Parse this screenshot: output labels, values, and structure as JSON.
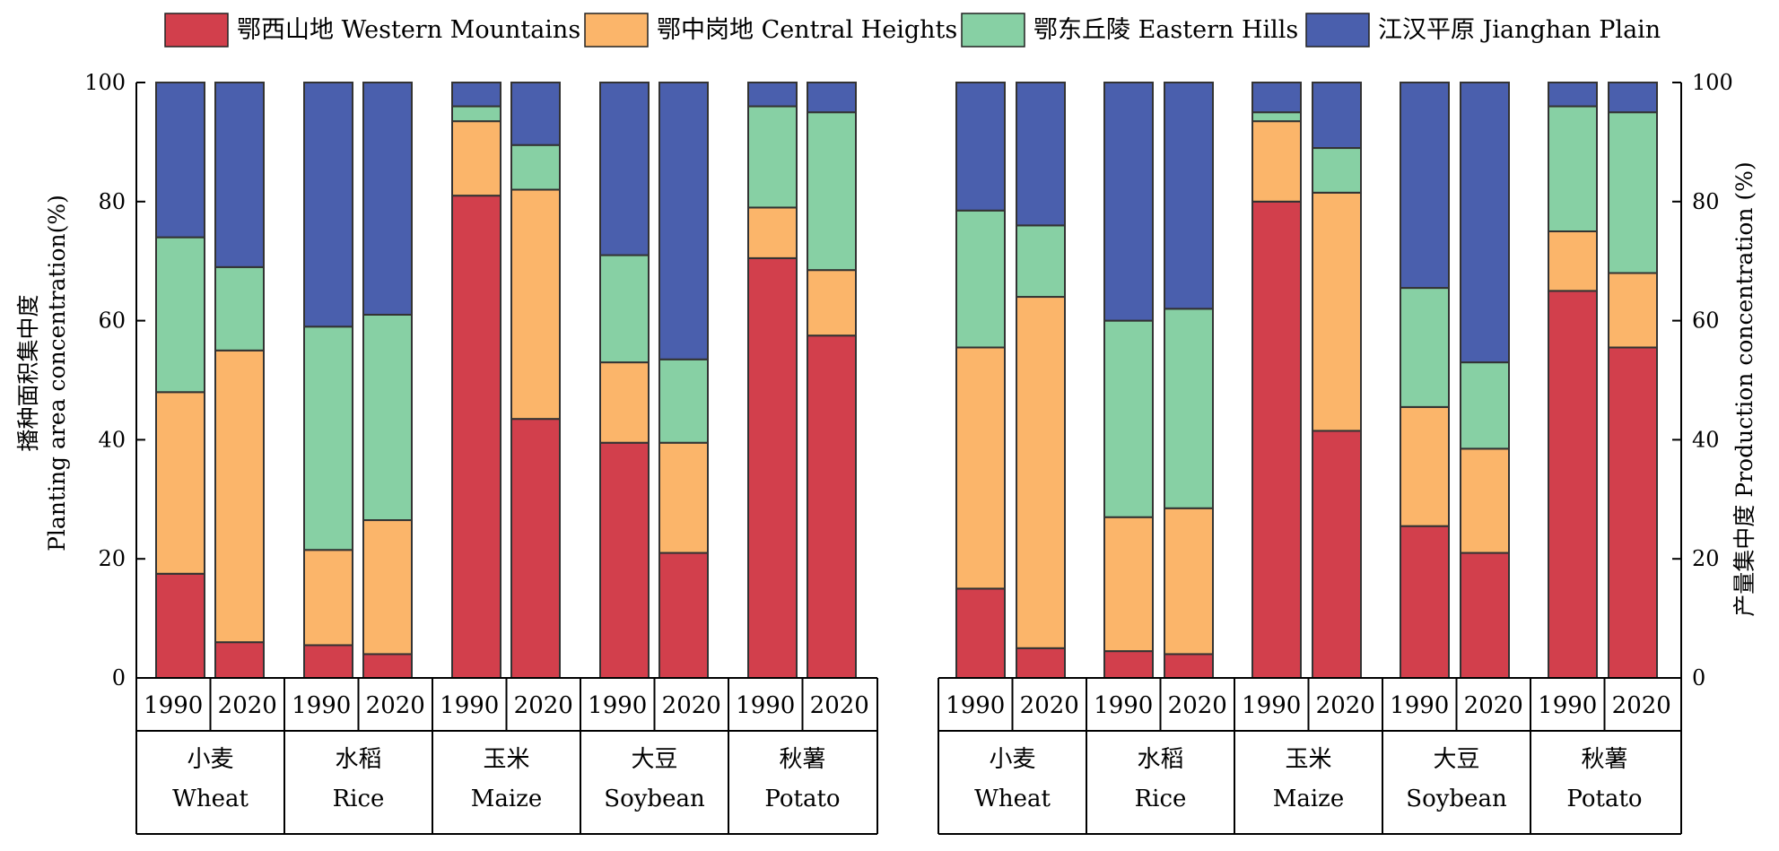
{
  "legend": [
    {
      "key": "west",
      "label": "鄂西山地 Western Mountains",
      "color": "#d23f4c"
    },
    {
      "key": "central",
      "label": "鄂中岗地 Central Heights",
      "color": "#fbb56a"
    },
    {
      "key": "east",
      "label": "鄂东丘陵 Eastern Hills",
      "color": "#87d0a4"
    },
    {
      "key": "jianghan",
      "label": "江汉平原 Jianghan Plain",
      "color": "#4a5fad"
    }
  ],
  "chart_data": [
    {
      "type": "bar",
      "stacked": true,
      "ylabel_cn": "播种面积集中度",
      "ylabel_en": "Planting area concentration(%)",
      "ylim": [
        0,
        100
      ],
      "yticks": [
        "0",
        "20",
        "40",
        "60",
        "80",
        "100"
      ],
      "years": [
        "1990",
        "2020"
      ],
      "crops": [
        {
          "cn": "小麦",
          "en": "Wheat",
          "values": {
            "1990": [
              17.5,
              30.5,
              26.0,
              26.0
            ],
            "2020": [
              6.0,
              49.0,
              14.0,
              31.0
            ]
          }
        },
        {
          "cn": "水稻",
          "en": "Rice",
          "values": {
            "1990": [
              5.5,
              16.0,
              37.5,
              41.0
            ],
            "2020": [
              4.0,
              22.5,
              34.5,
              39.0
            ]
          }
        },
        {
          "cn": "玉米",
          "en": "Maize",
          "values": {
            "1990": [
              81.0,
              12.5,
              2.5,
              4.0
            ],
            "2020": [
              43.5,
              38.5,
              7.5,
              10.5
            ]
          }
        },
        {
          "cn": "大豆",
          "en": "Soybean",
          "values": {
            "1990": [
              39.5,
              13.5,
              18.0,
              29.0
            ],
            "2020": [
              21.0,
              18.5,
              14.0,
              46.5
            ]
          }
        },
        {
          "cn": "秋薯",
          "en": "Potato",
          "values": {
            "1990": [
              70.5,
              8.5,
              17.0,
              4.0
            ],
            "2020": [
              57.5,
              11.0,
              26.5,
              5.0
            ]
          }
        }
      ]
    },
    {
      "type": "bar",
      "stacked": true,
      "ylabel_cn": "产量集中度",
      "ylabel_en": "Production concentration (%)",
      "ylim": [
        0,
        100
      ],
      "yticks": [
        "0",
        "20",
        "40",
        "60",
        "80",
        "100"
      ],
      "years": [
        "1990",
        "2020"
      ],
      "crops": [
        {
          "cn": "小麦",
          "en": "Wheat",
          "values": {
            "1990": [
              15.0,
              40.5,
              23.0,
              21.5
            ],
            "2020": [
              5.0,
              59.0,
              12.0,
              24.0
            ]
          }
        },
        {
          "cn": "水稻",
          "en": "Rice",
          "values": {
            "1990": [
              4.5,
              22.5,
              33.0,
              40.0
            ],
            "2020": [
              4.0,
              24.5,
              33.5,
              38.0
            ]
          }
        },
        {
          "cn": "玉米",
          "en": "Maize",
          "values": {
            "1990": [
              80.0,
              13.5,
              1.5,
              5.0
            ],
            "2020": [
              41.5,
              40.0,
              7.5,
              11.0
            ]
          }
        },
        {
          "cn": "大豆",
          "en": "Soybean",
          "values": {
            "1990": [
              25.5,
              20.0,
              20.0,
              34.5
            ],
            "2020": [
              21.0,
              17.5,
              14.5,
              47.0
            ]
          }
        },
        {
          "cn": "秋薯",
          "en": "Potato",
          "values": {
            "1990": [
              65.0,
              10.0,
              21.0,
              4.0
            ],
            "2020": [
              55.5,
              12.5,
              27.0,
              5.0
            ]
          }
        }
      ]
    }
  ]
}
